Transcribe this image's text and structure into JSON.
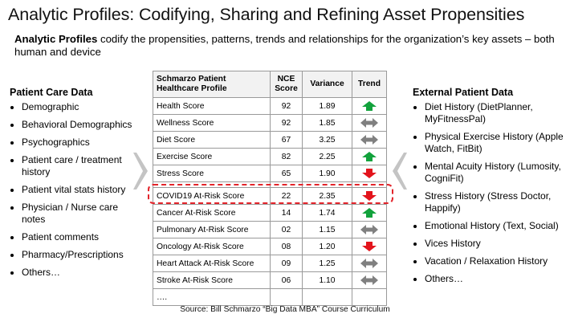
{
  "slide": {
    "title": "Analytic Profiles: Codifying, Sharing and Refining Asset Propensities",
    "intro_bold": "Analytic Profiles",
    "intro_rest": " codify the propensities, patterns, trends and relationships for the organization’s key assets – both human and device",
    "source": "Source: Bill Schmarzo “Big Data MBA” Course Curriculum"
  },
  "left_panel": {
    "title": "Patient Care Data",
    "items": [
      "Demographic",
      "Behavioral Demographics",
      "Psychographics",
      "Patient care / treatment history",
      "Patient vital stats history",
      "Physician / Nurse care notes",
      "Patient comments",
      "Pharmacy/Prescriptions",
      "Others…"
    ]
  },
  "right_panel": {
    "title": "External Patient Data",
    "items": [
      "Diet History (DietPlanner, MyFitnessPal)",
      "Physical Exercise History (Apple Watch, FitBit)",
      "Mental Acuity History (Lumosity, CogniFit)",
      "Stress History (Stress Doctor, Happify)",
      "Emotional History (Text, Social)",
      "Vices History",
      "Vacation / Relaxation History",
      "Others…"
    ]
  },
  "table": {
    "headers": {
      "profile_line1": "Schmarzo Patient",
      "profile_line2": "Healthcare Profile",
      "score_line1": "NCE",
      "score_line2": "Score",
      "variance": "Variance",
      "trend": "Trend"
    },
    "rows": [
      {
        "name": "Health Score",
        "score": "92",
        "variance": "1.89",
        "trend": "up"
      },
      {
        "name": "Wellness Score",
        "score": "92",
        "variance": "1.85",
        "trend": "flat"
      },
      {
        "name": "Diet Score",
        "score": "67",
        "variance": "3.25",
        "trend": "flat"
      },
      {
        "name": "Exercise Score",
        "score": "82",
        "variance": "2.25",
        "trend": "up"
      },
      {
        "name": "Stress Score",
        "score": "65",
        "variance": "1.90",
        "trend": "down"
      },
      {
        "name": "COVID19 At-Risk Score",
        "score": "22",
        "variance": "2.35",
        "trend": "down"
      },
      {
        "name": "Cancer At-Risk Score",
        "score": "14",
        "variance": "1.74",
        "trend": "up"
      },
      {
        "name": "Pulmonary At-Risk Score",
        "score": "02",
        "variance": "1.15",
        "trend": "flat"
      },
      {
        "name": "Oncology At-Risk Score",
        "score": "08",
        "variance": "1.20",
        "trend": "down"
      },
      {
        "name": "Heart Attack At-Risk Score",
        "score": "09",
        "variance": "1.25",
        "trend": "flat"
      },
      {
        "name": "Stroke At-Risk Score",
        "score": "06",
        "variance": "1.10",
        "trend": "flat"
      },
      {
        "name": "….",
        "score": "",
        "variance": "",
        "trend": ""
      }
    ]
  },
  "colors": {
    "up": "#12a23c",
    "down": "#e3141c",
    "flat": "#808080",
    "highlight": "#e3242b",
    "chevron": "#c4c4c4"
  },
  "icons": {
    "up": "trend-up-arrow-icon",
    "down": "trend-down-arrow-icon",
    "flat": "trend-flat-double-arrow-icon",
    "panel_arrows": "chevron-arrow-icon"
  }
}
